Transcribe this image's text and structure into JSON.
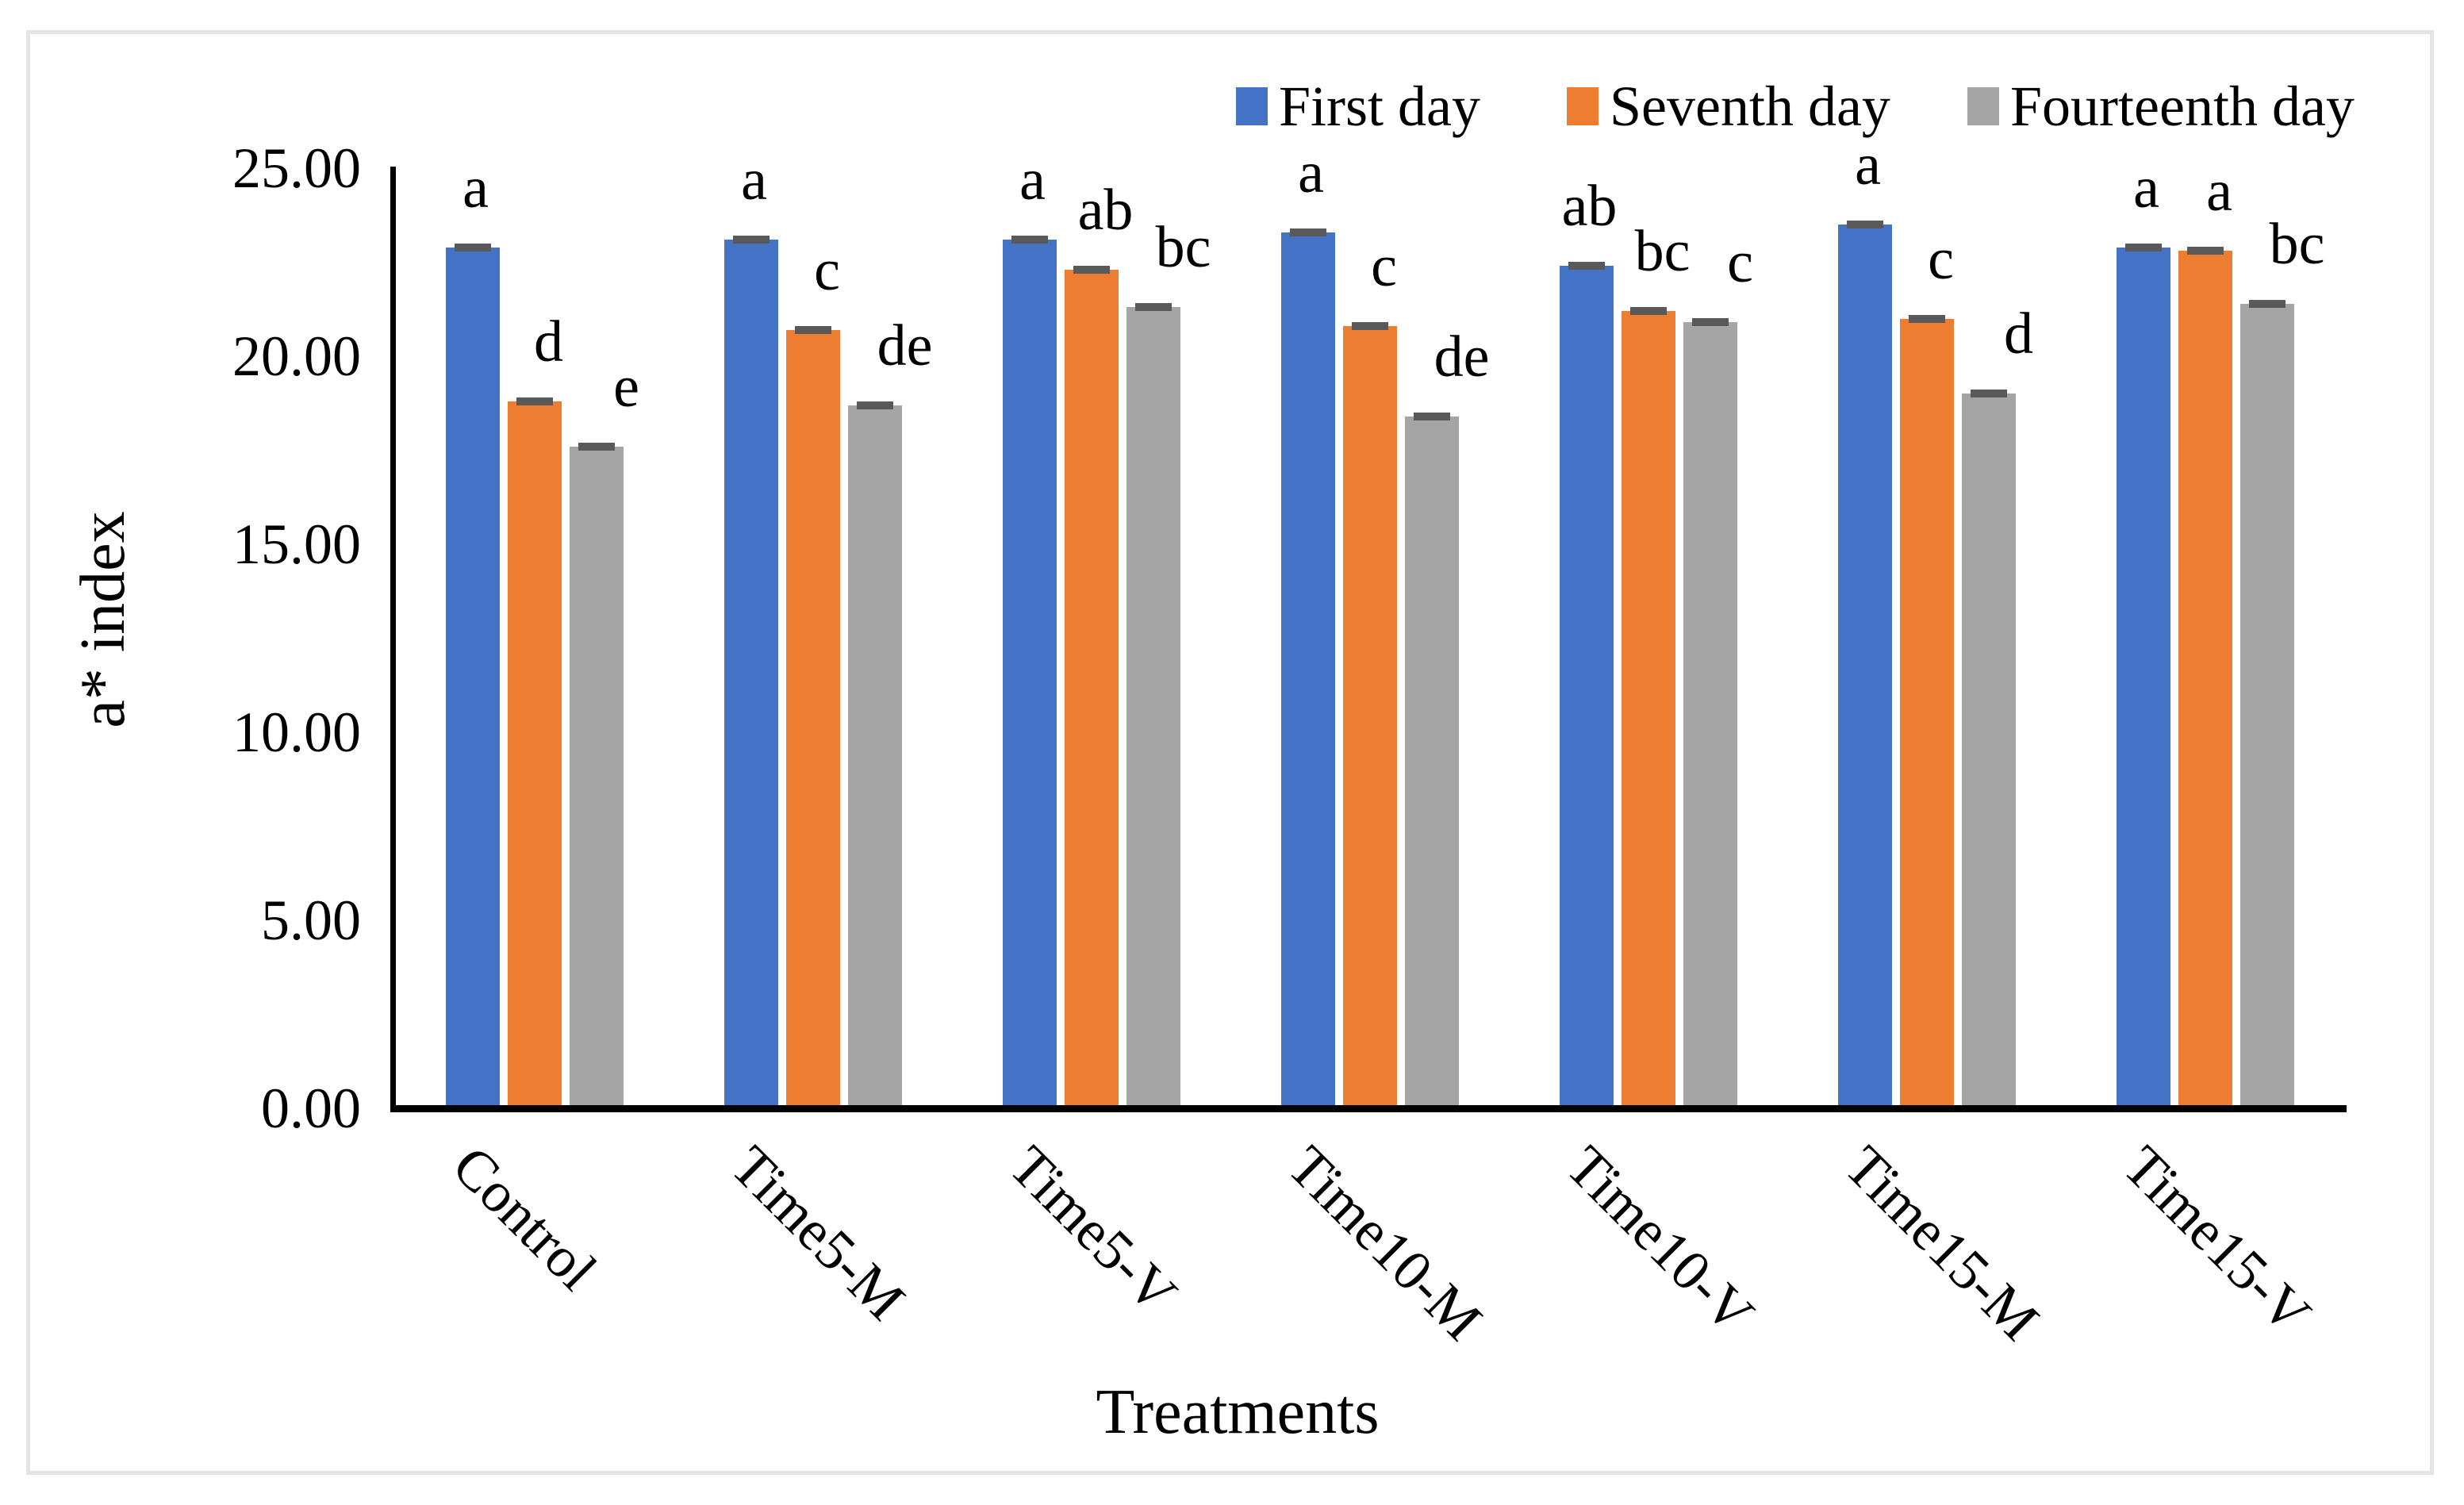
{
  "figure": {
    "background": "#ffffff",
    "border_color": "#e4e4e4",
    "axis_color": "#000000",
    "error_bar_cap_color": "#595959"
  },
  "chart_data": {
    "type": "bar",
    "title": "",
    "xlabel": "Treatments",
    "ylabel": "a* index",
    "ylim": [
      0,
      25
    ],
    "ytick_step": 5,
    "ytick_labels": [
      "0.00",
      "5.00",
      "10.00",
      "15.00",
      "20.00",
      "25.00"
    ],
    "grid": false,
    "legend_position": "top-right",
    "error_bars": true,
    "categories": [
      "Control",
      "Time5-M",
      "Time5-V",
      "Time10-M",
      "Time10-V",
      "Time15-M",
      "Time15-V"
    ],
    "series": [
      {
        "name": "First day",
        "color": "#4472C4",
        "values": [
          22.9,
          23.1,
          23.1,
          23.3,
          22.4,
          23.5,
          22.9
        ],
        "letters": [
          "a",
          "a",
          "a",
          "a",
          "ab",
          "a",
          "a"
        ]
      },
      {
        "name": "Seventh day",
        "color": "#ED7D31",
        "values": [
          18.8,
          20.7,
          22.3,
          20.8,
          21.2,
          21.0,
          22.8
        ],
        "letters": [
          "d",
          "c",
          "ab",
          "c",
          "bc",
          "c",
          "a"
        ]
      },
      {
        "name": "Fourteenth day",
        "color": "#A5A5A5",
        "values": [
          17.6,
          18.7,
          21.3,
          18.4,
          20.9,
          19.0,
          21.4
        ],
        "letters": [
          "e",
          "de",
          "bc",
          "de",
          "c",
          "d",
          "bc"
        ]
      }
    ]
  }
}
